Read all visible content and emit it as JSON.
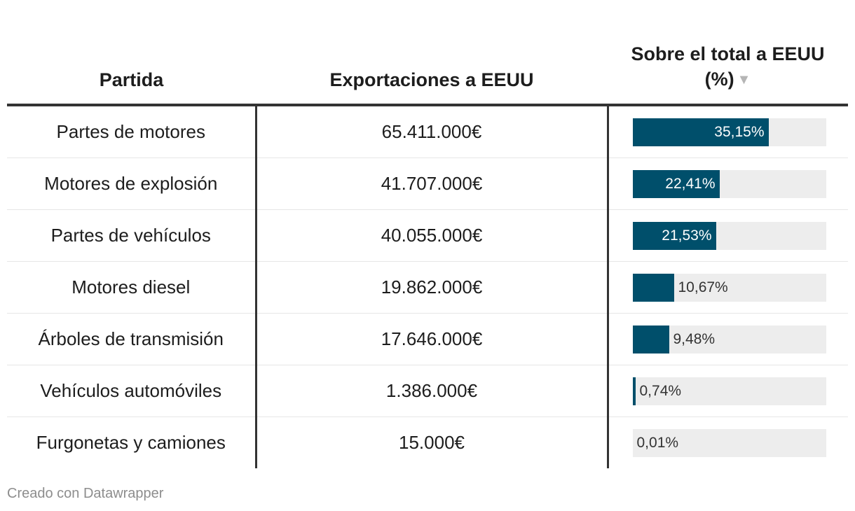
{
  "chart_data": {
    "type": "table",
    "columns": [
      "Partida",
      "Exportaciones a EEUU",
      "Sobre el total a EEUU (%)"
    ],
    "sorted_by": "Sobre el total a EEUU (%)",
    "sort_order": "descending",
    "rows": [
      {
        "partida": "Partes de motores",
        "exportaciones": "65.411.000€",
        "share": 35.15,
        "share_label": "35,15%"
      },
      {
        "partida": "Motores de explosión",
        "exportaciones": "41.707.000€",
        "share": 22.41,
        "share_label": "22,41%"
      },
      {
        "partida": "Partes de vehículos",
        "exportaciones": "40.055.000€",
        "share": 21.53,
        "share_label": "21,53%"
      },
      {
        "partida": "Motores diesel",
        "exportaciones": "19.862.000€",
        "share": 10.67,
        "share_label": "10,67%"
      },
      {
        "partida": "Árboles de transmisión",
        "exportaciones": "17.646.000€",
        "share": 9.48,
        "share_label": "9,48%"
      },
      {
        "partida": "Vehículos automóviles",
        "exportaciones": "1.386.000€",
        "share": 0.74,
        "share_label": "0,74%"
      },
      {
        "partida": "Furgonetas y camiones",
        "exportaciones": "15.000€",
        "share": 0.01,
        "share_label": "0,01%"
      }
    ],
    "bar_max": 50
  },
  "header": {
    "partida": "Partida",
    "exportaciones": "Exportaciones a EEUU",
    "share": "Sobre el total a EEUU (%)",
    "sort_icon": "▼"
  },
  "footer": {
    "credit": "Creado con Datawrapper"
  },
  "colors": {
    "bar": "#004f6b",
    "track": "#ededed",
    "sort_icon": "#b5b5b5"
  }
}
